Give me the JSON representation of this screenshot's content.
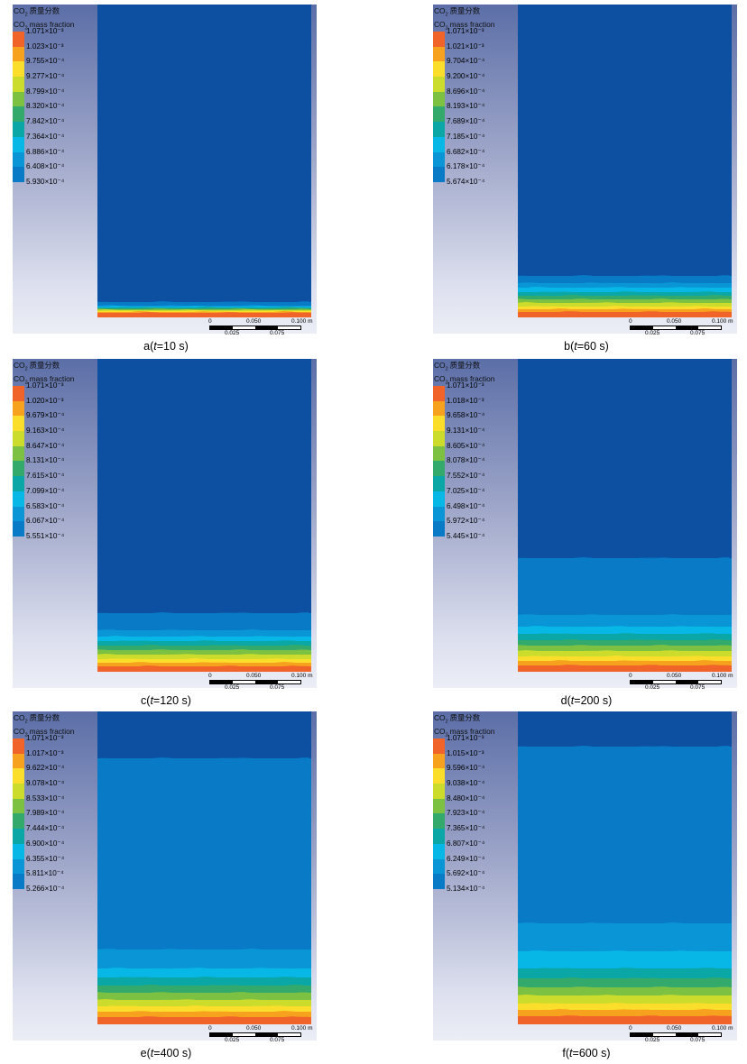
{
  "legend_title_cn": "质量分数",
  "legend_title_en": "mass fraction",
  "legend_prefix": "CO",
  "scale": {
    "ticks_top": [
      "0",
      "0.050",
      "0.100 m"
    ],
    "ticks_bottom": [
      "0.025",
      "0.075"
    ]
  },
  "colors": [
    "#f0642a",
    "#f6a21f",
    "#fbde2b",
    "#ccdc2c",
    "#7cc142",
    "#33aa6c",
    "#0aa7a6",
    "#07b7e6",
    "#0a95d6",
    "#087ac6",
    "#0d4fa0"
  ],
  "panels": [
    {
      "id": "a",
      "label": "a(",
      "t": "t",
      "time": "=10 s)",
      "legend": [
        "1.071×10⁻³",
        "1.023×10⁻³",
        "9.755×10⁻⁴",
        "9.277×10⁻⁴",
        "8.799×10⁻⁴",
        "8.320×10⁻⁴",
        "7.842×10⁻⁴",
        "7.364×10⁻⁴",
        "6.886×10⁻⁴",
        "6.408×10⁻⁴",
        "5.930×10⁻⁴"
      ],
      "band_heights": [
        3,
        1,
        1,
        1,
        1,
        1,
        1,
        1,
        1,
        4,
        332
      ]
    },
    {
      "id": "b",
      "label": "b(",
      "t": "t",
      "time": "=60 s)",
      "legend": [
        "1.071×10⁻³",
        "1.021×10⁻³",
        "9.704×10⁻⁴",
        "9.200×10⁻⁴",
        "8.696×10⁻⁴",
        "8.193×10⁻⁴",
        "7.689×10⁻⁴",
        "7.185×10⁻⁴",
        "6.682×10⁻⁴",
        "6.178×10⁻⁴",
        "5.674×10⁻⁴"
      ],
      "band_heights": [
        4,
        3,
        3,
        4,
        4,
        4,
        4,
        5,
        5,
        8,
        303
      ]
    },
    {
      "id": "c",
      "label": "c(",
      "t": "t",
      "time": "=120 s)",
      "legend": [
        "1.071×10⁻³",
        "1.020×10⁻³",
        "9.679×10⁻⁴",
        "9.163×10⁻⁴",
        "8.647×10⁻⁴",
        "8.131×10⁻⁴",
        "7.615×10⁻⁴",
        "7.099×10⁻⁴",
        "6.583×10⁻⁴",
        "6.067×10⁻⁴",
        "5.551×10⁻⁴"
      ],
      "band_heights": [
        4,
        4,
        4,
        5,
        5,
        5,
        5,
        5,
        7,
        19,
        284
      ]
    },
    {
      "id": "d",
      "label": "d(",
      "t": "t",
      "time": "=200 s)",
      "legend": [
        "1.071×10⁻³",
        "1.018×10⁻³",
        "9.658×10⁻⁴",
        "9.131×10⁻⁴",
        "8.605×10⁻⁴",
        "8.078×10⁻⁴",
        "7.552×10⁻⁴",
        "7.025×10⁻⁴",
        "6.498×10⁻⁴",
        "5.972×10⁻⁴",
        "5.445×10⁻⁴"
      ],
      "band_heights": [
        5,
        5,
        5,
        6,
        6,
        6,
        7,
        8,
        13,
        63,
        223
      ]
    },
    {
      "id": "e",
      "label": "e(",
      "t": "t",
      "time": "=400 s)",
      "legend": [
        "1.071×10⁻³",
        "1.017×10⁻³",
        "9.622×10⁻⁴",
        "9.078×10⁻⁴",
        "8.533×10⁻⁴",
        "7.989×10⁻⁴",
        "7.444×10⁻⁴",
        "6.900×10⁻⁴",
        "6.355×10⁻⁴",
        "5.811×10⁻⁴",
        "5.266×10⁻⁴"
      ],
      "band_heights": [
        6,
        6,
        6,
        7,
        8,
        8,
        9,
        10,
        21,
        212,
        54
      ]
    },
    {
      "id": "f",
      "label": "f(",
      "t": "t",
      "time": "=600 s)",
      "legend": [
        "1.071×10⁻³",
        "1.015×10⁻³",
        "9.596×10⁻⁴",
        "9.038×10⁻⁴",
        "8.480×10⁻⁴",
        "7.923×10⁻⁴",
        "7.365×10⁻⁴",
        "6.807×10⁻⁴",
        "6.249×10⁻⁴",
        "5.692×10⁻⁴",
        "5.134×10⁻⁴"
      ],
      "band_heights": [
        7,
        7,
        7,
        9,
        9,
        10,
        11,
        19,
        31,
        196,
        41
      ]
    }
  ]
}
